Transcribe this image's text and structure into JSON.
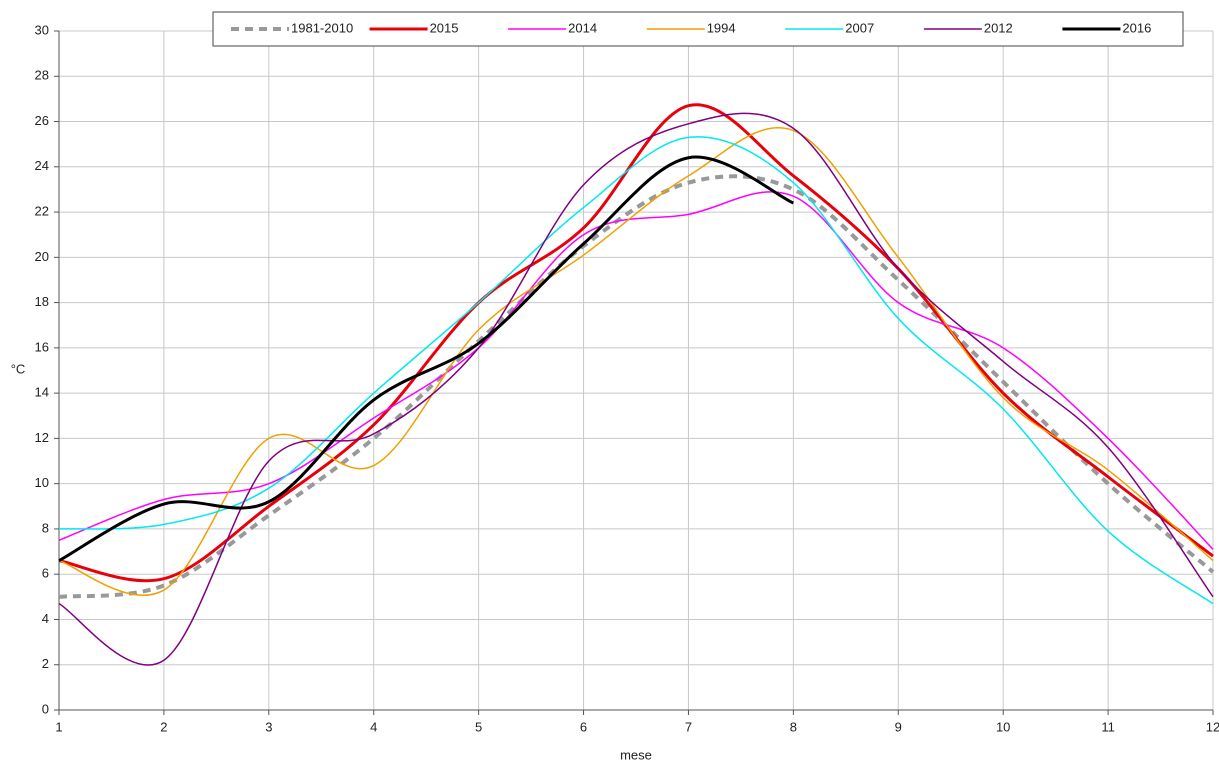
{
  "chart_data": {
    "type": "line",
    "smooth": true,
    "grid": true,
    "x_label": "mese",
    "y_label": "°C",
    "x": [
      1,
      2,
      3,
      4,
      5,
      6,
      7,
      8,
      9,
      10,
      11,
      12
    ],
    "xlim": [
      1,
      12
    ],
    "xticks": [
      1,
      2,
      3,
      4,
      5,
      6,
      7,
      8,
      9,
      10,
      11,
      12
    ],
    "ylim": [
      0,
      30
    ],
    "yticks": [
      0,
      2,
      4,
      6,
      8,
      10,
      12,
      14,
      16,
      18,
      20,
      22,
      24,
      26,
      28,
      30
    ],
    "legend": "top",
    "series": [
      {
        "name": "1981-2010",
        "color": "#999999",
        "width": 4,
        "dashed": true,
        "values": [
          5.0,
          5.5,
          8.6,
          12.0,
          16.3,
          20.5,
          23.3,
          23.0,
          19.0,
          14.5,
          10.0,
          6.1
        ]
      },
      {
        "name": "2015",
        "color": "#e8000b",
        "width": 3,
        "values": [
          6.6,
          5.8,
          9.0,
          12.6,
          18.0,
          21.3,
          26.7,
          23.6,
          19.5,
          14.0,
          10.3,
          6.8
        ]
      },
      {
        "name": "2014",
        "color": "#ff00ff",
        "width": 1.5,
        "values": [
          7.5,
          9.3,
          10.0,
          12.9,
          16.0,
          21.0,
          21.9,
          22.7,
          18.0,
          16.0,
          12.0,
          7.1
        ]
      },
      {
        "name": "1994",
        "color": "#f0a000",
        "width": 1.5,
        "values": [
          6.6,
          5.3,
          12.0,
          10.8,
          16.8,
          20.1,
          23.6,
          25.6,
          20.0,
          13.8,
          10.6,
          6.6
        ]
      },
      {
        "name": "2007",
        "color": "#00e8f0",
        "width": 1.5,
        "values": [
          8.0,
          8.2,
          9.8,
          14.0,
          18.0,
          22.2,
          25.3,
          23.3,
          17.3,
          13.3,
          7.9,
          4.7
        ]
      },
      {
        "name": "2012",
        "color": "#800080",
        "width": 1.5,
        "values": [
          4.7,
          2.2,
          11.0,
          12.2,
          16.0,
          23.2,
          25.9,
          25.7,
          19.5,
          15.4,
          11.6,
          5.0
        ]
      },
      {
        "name": "2016",
        "color": "#000000",
        "width": 3,
        "values": [
          6.6,
          9.1,
          9.2,
          13.7,
          16.2,
          20.6,
          24.4,
          22.4,
          null,
          null,
          null,
          null
        ]
      }
    ]
  }
}
